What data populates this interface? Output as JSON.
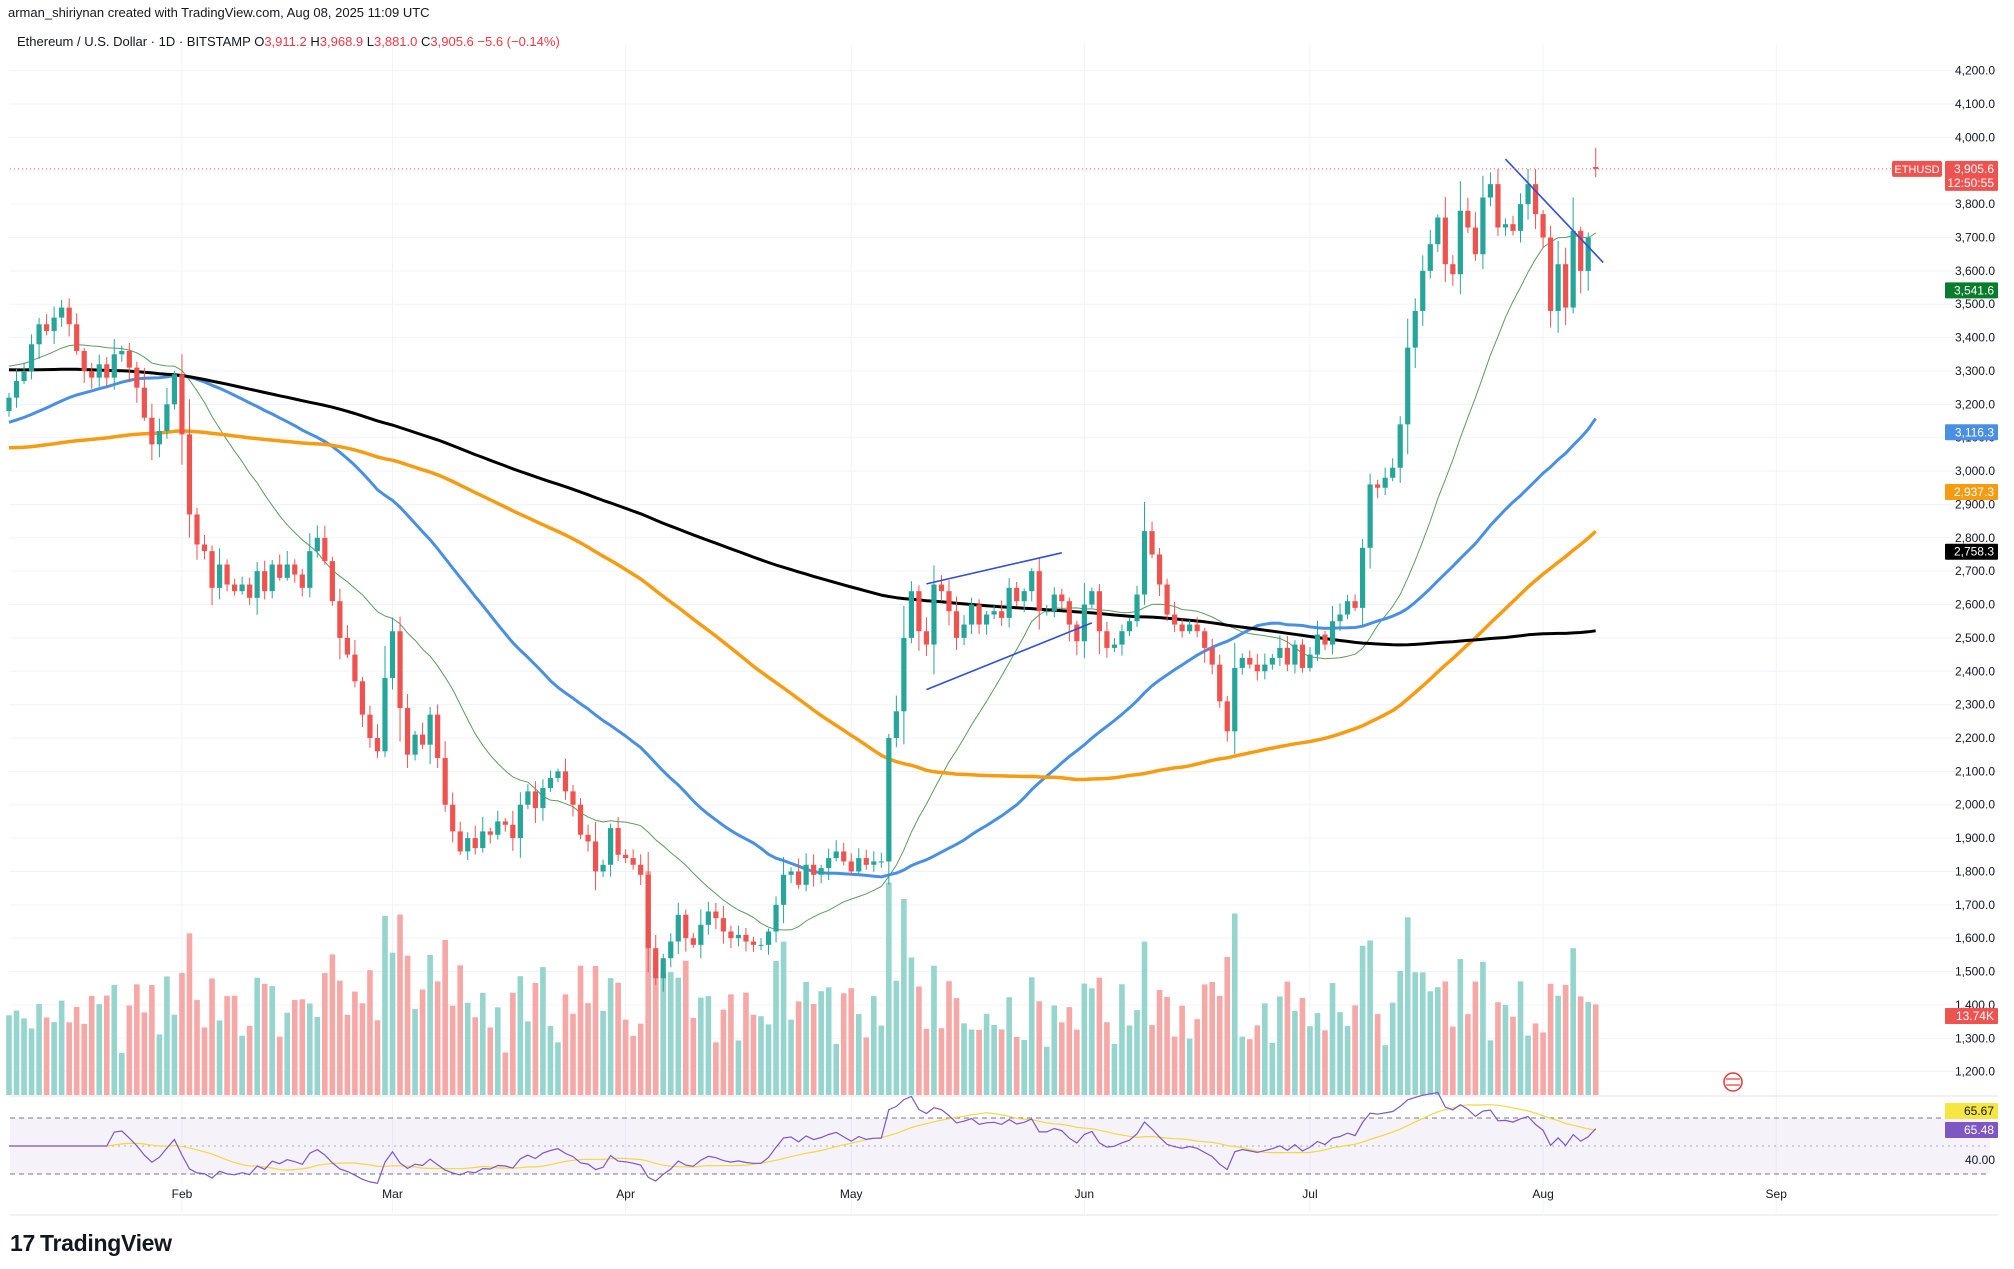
{
  "header": {
    "created_by": "arman_shiriynan created with TradingView.com, Aug 08, 2025 11:09 UTC"
  },
  "symbol_line": {
    "name": "Ethereum / U.S. Dollar · 1D · BITSTAMP",
    "open_label": "O",
    "open": "3,911.2",
    "high_label": "H",
    "high": "3,968.9",
    "low_label": "L",
    "low": "3,881.0",
    "close_label": "C",
    "close": "3,905.6",
    "change": "−5.6 (−0.14%)"
  },
  "brand": {
    "name": "TradingView",
    "mark": "17"
  },
  "colors": {
    "up": "#26a69a",
    "down": "#ef5350",
    "vol_up": "#96d4ce",
    "vol_down": "#f6a8a6",
    "ma20": "#5b9e5b",
    "ma50": "#4a90e2",
    "ma100": "#f59c12",
    "ma200": "#000000",
    "trendline": "#2f50d4",
    "rsi": "#7e57c2",
    "rsi_ma": "#f5d742"
  },
  "chart_data": {
    "type": "candlestick",
    "symbol": "ETHUSD",
    "timeframe": "1D",
    "x_range": [
      "2025-01-09",
      "2025-09-15"
    ],
    "y_range": [
      1130,
      4280
    ],
    "y_ticks": [
      "1,200.0",
      "1,300.0",
      "1,400.0",
      "1,500.0",
      "1,600.0",
      "1,700.0",
      "1,800.0",
      "1,900.0",
      "2,000.0",
      "2,100.0",
      "2,200.0",
      "2,300.0",
      "2,400.0",
      "2,500.0",
      "2,600.0",
      "2,700.0",
      "2,800.0",
      "2,900.0",
      "3,000.0",
      "3,100.0",
      "3,200.0",
      "3,300.0",
      "3,400.0",
      "3,500.0",
      "3,600.0",
      "3,700.0",
      "3,800.0",
      "3,900.0",
      "4,000.0",
      "4,100.0",
      "4,200.0"
    ],
    "x_ticks": [
      {
        "date": "2025-02-01",
        "label": "Feb"
      },
      {
        "date": "2025-03-01",
        "label": "Mar"
      },
      {
        "date": "2025-04-01",
        "label": "Apr"
      },
      {
        "date": "2025-05-01",
        "label": "May"
      },
      {
        "date": "2025-06-01",
        "label": "Jun"
      },
      {
        "date": "2025-07-01",
        "label": "Jul"
      },
      {
        "date": "2025-08-01",
        "label": "Aug"
      },
      {
        "date": "2025-09-01",
        "label": "Sep"
      }
    ],
    "start_date": "2025-01-09",
    "closes": [
      3220,
      3270,
      3300,
      3380,
      3440,
      3420,
      3460,
      3490,
      3440,
      3360,
      3300,
      3280,
      3320,
      3280,
      3350,
      3360,
      3310,
      3250,
      3160,
      3080,
      3120,
      3200,
      3290,
      3110,
      2870,
      2780,
      2760,
      2650,
      2720,
      2660,
      2640,
      2660,
      2620,
      2700,
      2640,
      2720,
      2680,
      2720,
      2690,
      2650,
      2760,
      2800,
      2730,
      2610,
      2500,
      2450,
      2370,
      2270,
      2200,
      2160,
      2380,
      2520,
      2290,
      2150,
      2210,
      2180,
      2270,
      2140,
      2000,
      1920,
      1860,
      1900,
      1870,
      1920,
      1910,
      1950,
      1940,
      1900,
      2000,
      2040,
      1990,
      2050,
      2080,
      2100,
      2040,
      2000,
      1910,
      1890,
      1800,
      1820,
      1930,
      1850,
      1840,
      1820,
      1790,
      1570,
      1480,
      1540,
      1590,
      1670,
      1600,
      1580,
      1640,
      1680,
      1660,
      1620,
      1600,
      1610,
      1590,
      1580,
      1580,
      1620,
      1700,
      1790,
      1800,
      1760,
      1820,
      1790,
      1810,
      1840,
      1860,
      1830,
      1800,
      1840,
      1820,
      1830,
      1830,
      2200,
      2280,
      2500,
      2640,
      2520,
      2480,
      2660,
      2640,
      2580,
      2500,
      2540,
      2600,
      2540,
      2570,
      2580,
      2560,
      2650,
      2610,
      2640,
      2700,
      2580,
      2580,
      2630,
      2610,
      2540,
      2490,
      2600,
      2640,
      2520,
      2470,
      2480,
      2520,
      2550,
      2630,
      2820,
      2750,
      2660,
      2570,
      2540,
      2520,
      2540,
      2520,
      2470,
      2420,
      2310,
      2220,
      2410,
      2440,
      2420,
      2400,
      2420,
      2440,
      2470,
      2420,
      2480,
      2410,
      2450,
      2510,
      2480,
      2550,
      2570,
      2610,
      2590,
      2770,
      2960,
      2950,
      2980,
      3010,
      3140,
      3370,
      3480,
      3600,
      3680,
      3760,
      3620,
      3590,
      3780,
      3730,
      3650,
      3820,
      3860,
      3730,
      3740,
      3720,
      3800,
      3860,
      3770,
      3700,
      3480,
      3620,
      3490,
      3720,
      3600,
      3700,
      3910
    ],
    "last_candle": {
      "open": 3911.2,
      "high": 3968.9,
      "low": 3881.0,
      "close": 3905.6
    },
    "moving_averages": [
      {
        "name": "MA20",
        "last": "3,541.6"
      },
      {
        "name": "MA50",
        "last": "3,116.3"
      },
      {
        "name": "MA100",
        "last": "2,937.3"
      },
      {
        "name": "MA200",
        "last": "2,758.3"
      }
    ],
    "trendlines": [
      {
        "from": [
          "2025-05-11",
          2662
        ],
        "to": [
          "2025-05-29",
          2755
        ]
      },
      {
        "from": [
          "2025-05-11",
          2345
        ],
        "to": [
          "2025-06-02",
          2545
        ]
      },
      {
        "from": [
          "2025-07-27",
          3935
        ],
        "to": [
          "2025-08-09",
          3625
        ]
      }
    ],
    "price_tags": [
      {
        "label": "ETHUSD",
        "value": "3,905.6",
        "countdown": "12:50:55"
      },
      {
        "value": "3,541.6"
      },
      {
        "value": "3,116.3"
      },
      {
        "value": "2,937.3"
      },
      {
        "value": "2,758.3"
      }
    ],
    "volume": {
      "last": "13.74K"
    },
    "rsi": {
      "value": "65.48",
      "ma_value": "65.67",
      "levels": [
        70,
        30
      ],
      "tick": "40.00"
    }
  }
}
